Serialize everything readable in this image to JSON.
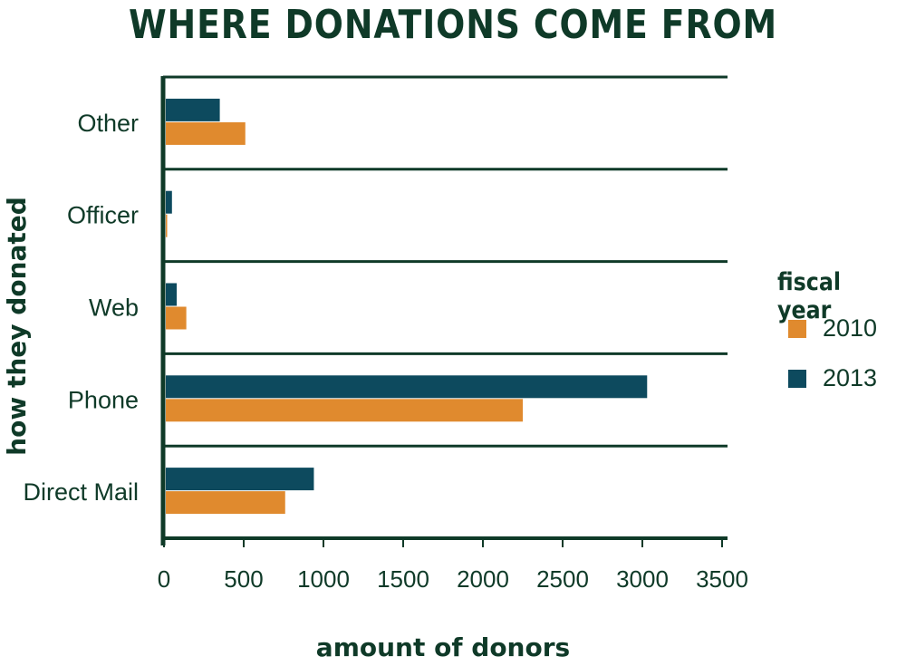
{
  "chart_data": {
    "type": "bar",
    "orientation": "horizontal",
    "title": "WHERE DONATIONS COME FROM",
    "xlabel": "amount of donors",
    "ylabel": "how they donated",
    "categories": [
      "Other",
      "Officer",
      "Web",
      "Phone",
      "Direct Mail"
    ],
    "series": [
      {
        "name": "2013",
        "color": "#0d4a5e",
        "values": [
          350,
          50,
          80,
          3030,
          940
        ]
      },
      {
        "name": "2010",
        "color": "#e08a2e",
        "values": [
          510,
          20,
          140,
          2250,
          760
        ]
      }
    ],
    "xlim": [
      0,
      3500
    ],
    "xticks": [
      0,
      500,
      1000,
      1500,
      2000,
      2500,
      3000,
      3500
    ],
    "legend_title": "fiscal year",
    "legend": [
      {
        "label": "2010",
        "color": "#e08a2e"
      },
      {
        "label": "2013",
        "color": "#0d4a5e"
      }
    ],
    "legend_position": "right",
    "grid": false
  }
}
